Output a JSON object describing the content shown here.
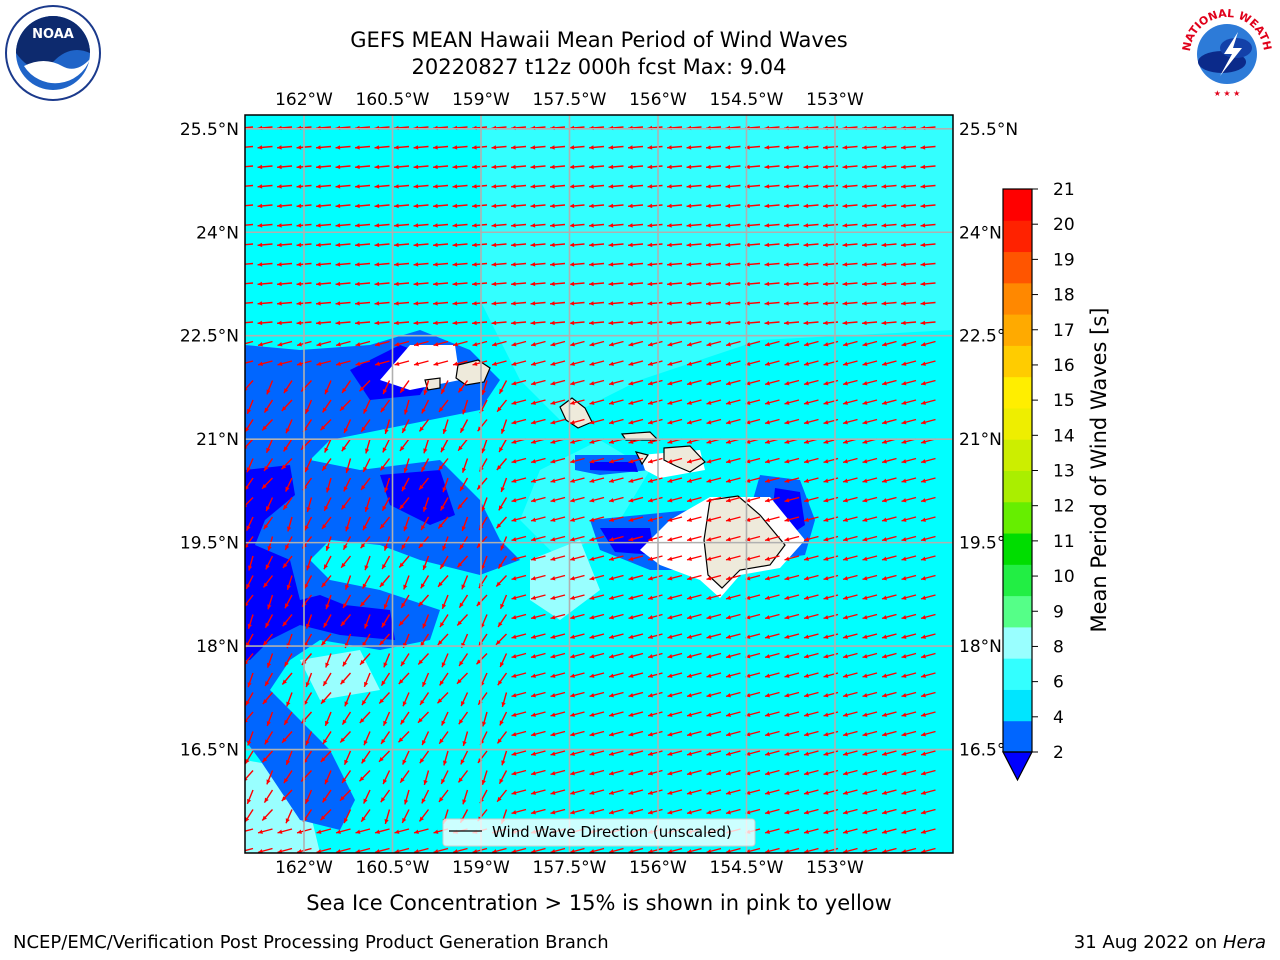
{
  "title": {
    "line1": "GEFS MEAN Hawaii Mean Period of Wind Waves",
    "line2": "20220827 t12z 000h fcst   Max: 9.04"
  },
  "map": {
    "lon_range": [
      -163,
      -151
    ],
    "lat_range": [
      15,
      25.7
    ],
    "lon_ticks": [
      "162°W",
      "160.5°W",
      "159°W",
      "157.5°W",
      "156°W",
      "154.5°W",
      "153°W"
    ],
    "lat_ticks": [
      "25.5°N",
      "24°N",
      "22.5°N",
      "21°N",
      "19.5°N",
      "18°N",
      "16.5°N"
    ],
    "lon_values": [
      -162,
      -160.5,
      -159,
      -157.5,
      -156,
      -154.5,
      -153
    ],
    "lat_values": [
      25.5,
      24,
      22.5,
      21,
      19.5,
      18,
      16.5
    ],
    "ocean_color": "#00ffff",
    "land_color": "#eeeadb",
    "arrow_color": "#ff0000",
    "gridline_color": "#b0b0b0",
    "wave_arrows": "wind wave direction, mostly from east-northeast toward west-southwest, unscaled"
  },
  "legend": {
    "label": "Wind Wave Direction (unscaled)"
  },
  "colorbar": {
    "label": "Mean Period of Wind Waves [s]",
    "ticks": [
      "2",
      "4",
      "6",
      "8",
      "9",
      "10",
      "11",
      "12",
      "13",
      "14",
      "15",
      "16",
      "17",
      "18",
      "19",
      "20",
      "21"
    ],
    "colors": [
      "#0066ff",
      "#00e5ff",
      "#33ffff",
      "#99ffff",
      "#55ff88",
      "#22ee44",
      "#00dd00",
      "#66ee00",
      "#aaee00",
      "#ccee00",
      "#eeee00",
      "#ffee00",
      "#ffcc00",
      "#ffaa00",
      "#ff8800",
      "#ff5500",
      "#ff2200",
      "#ff0000"
    ],
    "under_color": "#0000ff",
    "extend": "min"
  },
  "ice_note": "Sea Ice Concentration > 15% is shown in pink to yellow",
  "footer": {
    "credit": "NCEP/EMC/Verification Post Processing Product Generation Branch",
    "date_prefix": "31 Aug 2022 on ",
    "machine": "Hera"
  },
  "logos": {
    "noaa_text": "NOAA",
    "nws_text": "NATIONAL WEATHER SERVICE"
  }
}
